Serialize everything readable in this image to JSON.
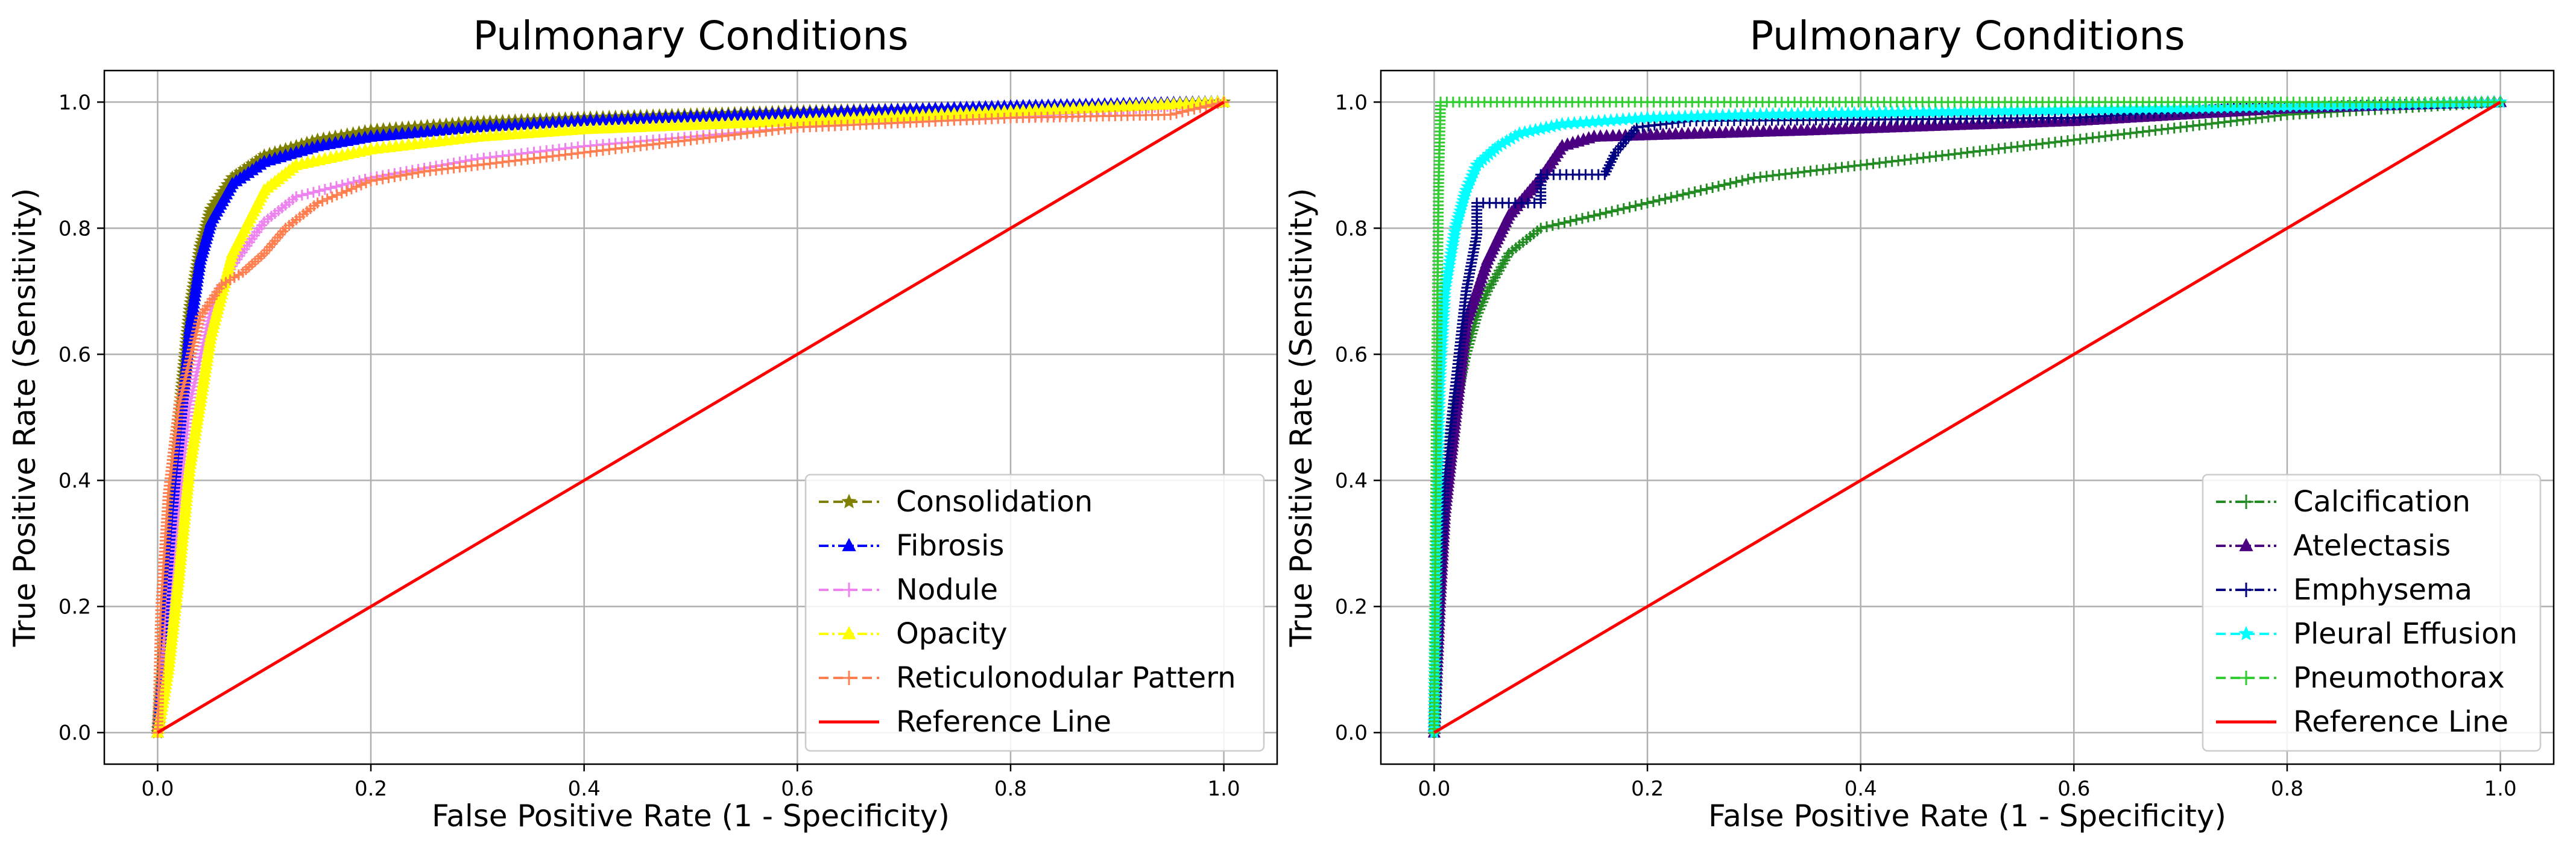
{
  "chart_data": [
    {
      "type": "line",
      "title": "Pulmonary Conditions",
      "xlabel": "False Positive Rate (1 - Specificity)",
      "ylabel": "True Positive Rate (Sensitivity)",
      "xlim": [
        -0.05,
        1.05
      ],
      "ylim": [
        -0.05,
        1.05
      ],
      "xticks": [
        0.0,
        0.2,
        0.4,
        0.6,
        0.8,
        1.0
      ],
      "yticks": [
        0.0,
        0.2,
        0.4,
        0.6,
        0.8,
        1.0
      ],
      "xtick_labels": [
        "0.0",
        "0.2",
        "0.4",
        "0.6",
        "0.8",
        "1.0"
      ],
      "ytick_labels": [
        "0.0",
        "0.2",
        "0.4",
        "0.6",
        "0.8",
        "1.0"
      ],
      "grid": true,
      "legend_position": "lower-right",
      "series": [
        {
          "name": "Consolidation",
          "color": "#808000",
          "marker": "star",
          "dash": "dashed",
          "points": [
            [
              0,
              0
            ],
            [
              0.005,
              0.1
            ],
            [
              0.01,
              0.25
            ],
            [
              0.02,
              0.5
            ],
            [
              0.03,
              0.67
            ],
            [
              0.04,
              0.77
            ],
            [
              0.05,
              0.83
            ],
            [
              0.07,
              0.88
            ],
            [
              0.1,
              0.915
            ],
            [
              0.15,
              0.94
            ],
            [
              0.2,
              0.955
            ],
            [
              0.3,
              0.968
            ],
            [
              0.4,
              0.975
            ],
            [
              0.6,
              0.985
            ],
            [
              0.8,
              0.992
            ],
            [
              1,
              1
            ]
          ]
        },
        {
          "name": "Fibrosis",
          "color": "#0000ff",
          "marker": "triangle",
          "dash": "dashdot",
          "points": [
            [
              0,
              0
            ],
            [
              0.005,
              0.1
            ],
            [
              0.01,
              0.22
            ],
            [
              0.02,
              0.45
            ],
            [
              0.03,
              0.64
            ],
            [
              0.04,
              0.75
            ],
            [
              0.05,
              0.81
            ],
            [
              0.07,
              0.87
            ],
            [
              0.1,
              0.905
            ],
            [
              0.15,
              0.93
            ],
            [
              0.2,
              0.945
            ],
            [
              0.3,
              0.96
            ],
            [
              0.4,
              0.97
            ],
            [
              0.6,
              0.982
            ],
            [
              0.8,
              0.993
            ],
            [
              1,
              1
            ]
          ]
        },
        {
          "name": "Nodule",
          "color": "#ee82ee",
          "marker": "plus",
          "dash": "dashed",
          "points": [
            [
              0,
              0
            ],
            [
              0.01,
              0.15
            ],
            [
              0.02,
              0.35
            ],
            [
              0.03,
              0.52
            ],
            [
              0.05,
              0.67
            ],
            [
              0.07,
              0.74
            ],
            [
              0.1,
              0.81
            ],
            [
              0.13,
              0.85
            ],
            [
              0.2,
              0.88
            ],
            [
              0.3,
              0.91
            ],
            [
              0.4,
              0.93
            ],
            [
              0.6,
              0.96
            ],
            [
              0.8,
              0.975
            ],
            [
              1,
              1
            ]
          ]
        },
        {
          "name": "Opacity",
          "color": "#ffff00",
          "marker": "triangle",
          "dash": "dashdot",
          "points": [
            [
              0,
              0
            ],
            [
              0.01,
              0.1
            ],
            [
              0.02,
              0.25
            ],
            [
              0.03,
              0.42
            ],
            [
              0.05,
              0.63
            ],
            [
              0.07,
              0.76
            ],
            [
              0.1,
              0.86
            ],
            [
              0.13,
              0.9
            ],
            [
              0.2,
              0.925
            ],
            [
              0.3,
              0.945
            ],
            [
              0.4,
              0.957
            ],
            [
              0.6,
              0.97
            ],
            [
              0.8,
              0.985
            ],
            [
              1,
              1
            ]
          ]
        },
        {
          "name": "Reticulonodular Pattern",
          "color": "#ff7f50",
          "marker": "plus",
          "dash": "dashed",
          "points": [
            [
              0,
              0
            ],
            [
              0.003,
              0.2
            ],
            [
              0.01,
              0.38
            ],
            [
              0.02,
              0.52
            ],
            [
              0.04,
              0.66
            ],
            [
              0.06,
              0.71
            ],
            [
              0.08,
              0.73
            ],
            [
              0.1,
              0.76
            ],
            [
              0.12,
              0.8
            ],
            [
              0.15,
              0.84
            ],
            [
              0.2,
              0.875
            ],
            [
              0.25,
              0.89
            ],
            [
              0.3,
              0.9
            ],
            [
              0.4,
              0.92
            ],
            [
              0.5,
              0.94
            ],
            [
              0.6,
              0.96
            ],
            [
              0.8,
              0.975
            ],
            [
              0.95,
              0.98
            ],
            [
              1,
              1
            ]
          ]
        },
        {
          "name": "Reference Line",
          "color": "#ff0000",
          "marker": "none",
          "dash": "solid",
          "points": [
            [
              0,
              0
            ],
            [
              1,
              1
            ]
          ]
        }
      ]
    },
    {
      "type": "line",
      "title": "Pulmonary Conditions",
      "xlabel": "False Positive Rate (1 - Specificity)",
      "ylabel": "True Positive Rate (Sensitivity)",
      "xlim": [
        -0.05,
        1.05
      ],
      "ylim": [
        -0.05,
        1.05
      ],
      "xticks": [
        0.0,
        0.2,
        0.4,
        0.6,
        0.8,
        1.0
      ],
      "yticks": [
        0.0,
        0.2,
        0.4,
        0.6,
        0.8,
        1.0
      ],
      "xtick_labels": [
        "0.0",
        "0.2",
        "0.4",
        "0.6",
        "0.8",
        "1.0"
      ],
      "ytick_labels": [
        "0.0",
        "0.2",
        "0.4",
        "0.6",
        "0.8",
        "1.0"
      ],
      "grid": true,
      "legend_position": "lower-right",
      "series": [
        {
          "name": "Calcification",
          "color": "#228b22",
          "marker": "plus",
          "dash": "dashdot",
          "points": [
            [
              0,
              0
            ],
            [
              0.002,
              0.1
            ],
            [
              0.005,
              0.25
            ],
            [
              0.01,
              0.4
            ],
            [
              0.02,
              0.52
            ],
            [
              0.03,
              0.6
            ],
            [
              0.04,
              0.66
            ],
            [
              0.05,
              0.7
            ],
            [
              0.07,
              0.76
            ],
            [
              0.1,
              0.8
            ],
            [
              0.15,
              0.82
            ],
            [
              0.2,
              0.84
            ],
            [
              0.25,
              0.86
            ],
            [
              0.3,
              0.88
            ],
            [
              0.4,
              0.9
            ],
            [
              0.5,
              0.92
            ],
            [
              0.6,
              0.94
            ],
            [
              0.7,
              0.96
            ],
            [
              0.8,
              0.98
            ],
            [
              0.9,
              0.99
            ],
            [
              1,
              1
            ]
          ]
        },
        {
          "name": "Atelectasis",
          "color": "#4b0082",
          "marker": "triangle",
          "dash": "dashdot",
          "points": [
            [
              0,
              0
            ],
            [
              0.005,
              0.2
            ],
            [
              0.01,
              0.35
            ],
            [
              0.02,
              0.5
            ],
            [
              0.03,
              0.65
            ],
            [
              0.05,
              0.75
            ],
            [
              0.07,
              0.82
            ],
            [
              0.09,
              0.86
            ],
            [
              0.1,
              0.88
            ],
            [
              0.12,
              0.93
            ],
            [
              0.15,
              0.945
            ],
            [
              0.25,
              0.95
            ],
            [
              0.35,
              0.955
            ],
            [
              0.6,
              0.97
            ],
            [
              0.8,
              0.99
            ],
            [
              1,
              1
            ]
          ]
        },
        {
          "name": "Emphysema",
          "color": "#000080",
          "marker": "plus",
          "dash": "dashdot",
          "points": [
            [
              0,
              0
            ],
            [
              0.005,
              0.25
            ],
            [
              0.01,
              0.4
            ],
            [
              0.02,
              0.55
            ],
            [
              0.03,
              0.7
            ],
            [
              0.04,
              0.79
            ],
            [
              0.04,
              0.84
            ],
            [
              0.1,
              0.84
            ],
            [
              0.1,
              0.885
            ],
            [
              0.16,
              0.885
            ],
            [
              0.17,
              0.92
            ],
            [
              0.19,
              0.96
            ],
            [
              0.24,
              0.97
            ],
            [
              0.6,
              0.975
            ],
            [
              0.75,
              0.99
            ],
            [
              1,
              1
            ]
          ]
        },
        {
          "name": "Pleural Effusion",
          "color": "#00ffff",
          "marker": "star",
          "dash": "dashed",
          "points": [
            [
              0,
              0
            ],
            [
              0.002,
              0.3
            ],
            [
              0.005,
              0.55
            ],
            [
              0.01,
              0.7
            ],
            [
              0.02,
              0.8
            ],
            [
              0.03,
              0.86
            ],
            [
              0.04,
              0.9
            ],
            [
              0.06,
              0.93
            ],
            [
              0.08,
              0.95
            ],
            [
              0.12,
              0.965
            ],
            [
              0.2,
              0.975
            ],
            [
              0.3,
              0.98
            ],
            [
              0.5,
              0.985
            ],
            [
              0.7,
              0.99
            ],
            [
              1,
              1
            ]
          ]
        },
        {
          "name": "Pneumothorax",
          "color": "#32cd32",
          "marker": "plus",
          "dash": "dashed",
          "points": [
            [
              0,
              0
            ],
            [
              0.002,
              0.5
            ],
            [
              0.004,
              0.86
            ],
            [
              0.006,
              1.0
            ],
            [
              0.2,
              1.0
            ],
            [
              0.5,
              1.0
            ],
            [
              0.8,
              1.0
            ],
            [
              1,
              1
            ]
          ]
        },
        {
          "name": "Reference Line",
          "color": "#ff0000",
          "marker": "none",
          "dash": "solid",
          "points": [
            [
              0,
              0
            ],
            [
              1,
              1
            ]
          ]
        }
      ]
    }
  ]
}
